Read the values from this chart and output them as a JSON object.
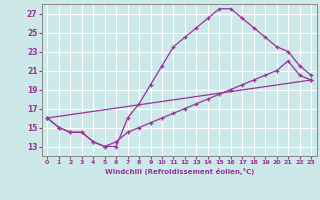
{
  "xlabel": "Windchill (Refroidissement éolien,°C)",
  "bg_color": "#cce8e8",
  "grid_color": "#ffffff",
  "line_color": "#993399",
  "xlim": [
    -0.5,
    23.5
  ],
  "ylim": [
    12.0,
    28.0
  ],
  "xticks": [
    0,
    1,
    2,
    3,
    4,
    5,
    6,
    7,
    8,
    9,
    10,
    11,
    12,
    13,
    14,
    15,
    16,
    17,
    18,
    19,
    20,
    21,
    22,
    23
  ],
  "yticks": [
    13,
    15,
    17,
    19,
    21,
    23,
    25,
    27
  ],
  "line1_x": [
    0,
    1,
    2,
    3,
    4,
    5,
    6,
    7,
    8,
    9,
    10,
    11,
    12,
    13,
    14,
    15,
    16,
    17,
    18,
    19,
    20,
    21,
    22,
    23
  ],
  "line1_y": [
    16.0,
    15.0,
    14.5,
    14.5,
    13.5,
    13.0,
    13.0,
    16.0,
    17.5,
    19.5,
    21.5,
    23.5,
    24.5,
    25.5,
    26.5,
    27.5,
    27.5,
    26.5,
    25.5,
    24.5,
    23.5,
    23.0,
    21.5,
    20.5
  ],
  "line2_x": [
    0,
    1,
    2,
    3,
    4,
    5,
    6,
    7,
    8,
    9,
    10,
    11,
    12,
    13,
    14,
    15,
    16,
    17,
    18,
    19,
    20,
    21,
    22,
    23
  ],
  "line2_y": [
    16.0,
    15.0,
    14.5,
    14.5,
    13.5,
    13.0,
    13.5,
    14.5,
    15.0,
    15.5,
    16.0,
    16.5,
    17.0,
    17.5,
    18.0,
    18.5,
    19.0,
    19.5,
    20.0,
    20.5,
    21.0,
    22.0,
    20.5,
    20.0
  ],
  "line3_x": [
    0,
    23
  ],
  "line3_y": [
    16.0,
    20.0
  ]
}
